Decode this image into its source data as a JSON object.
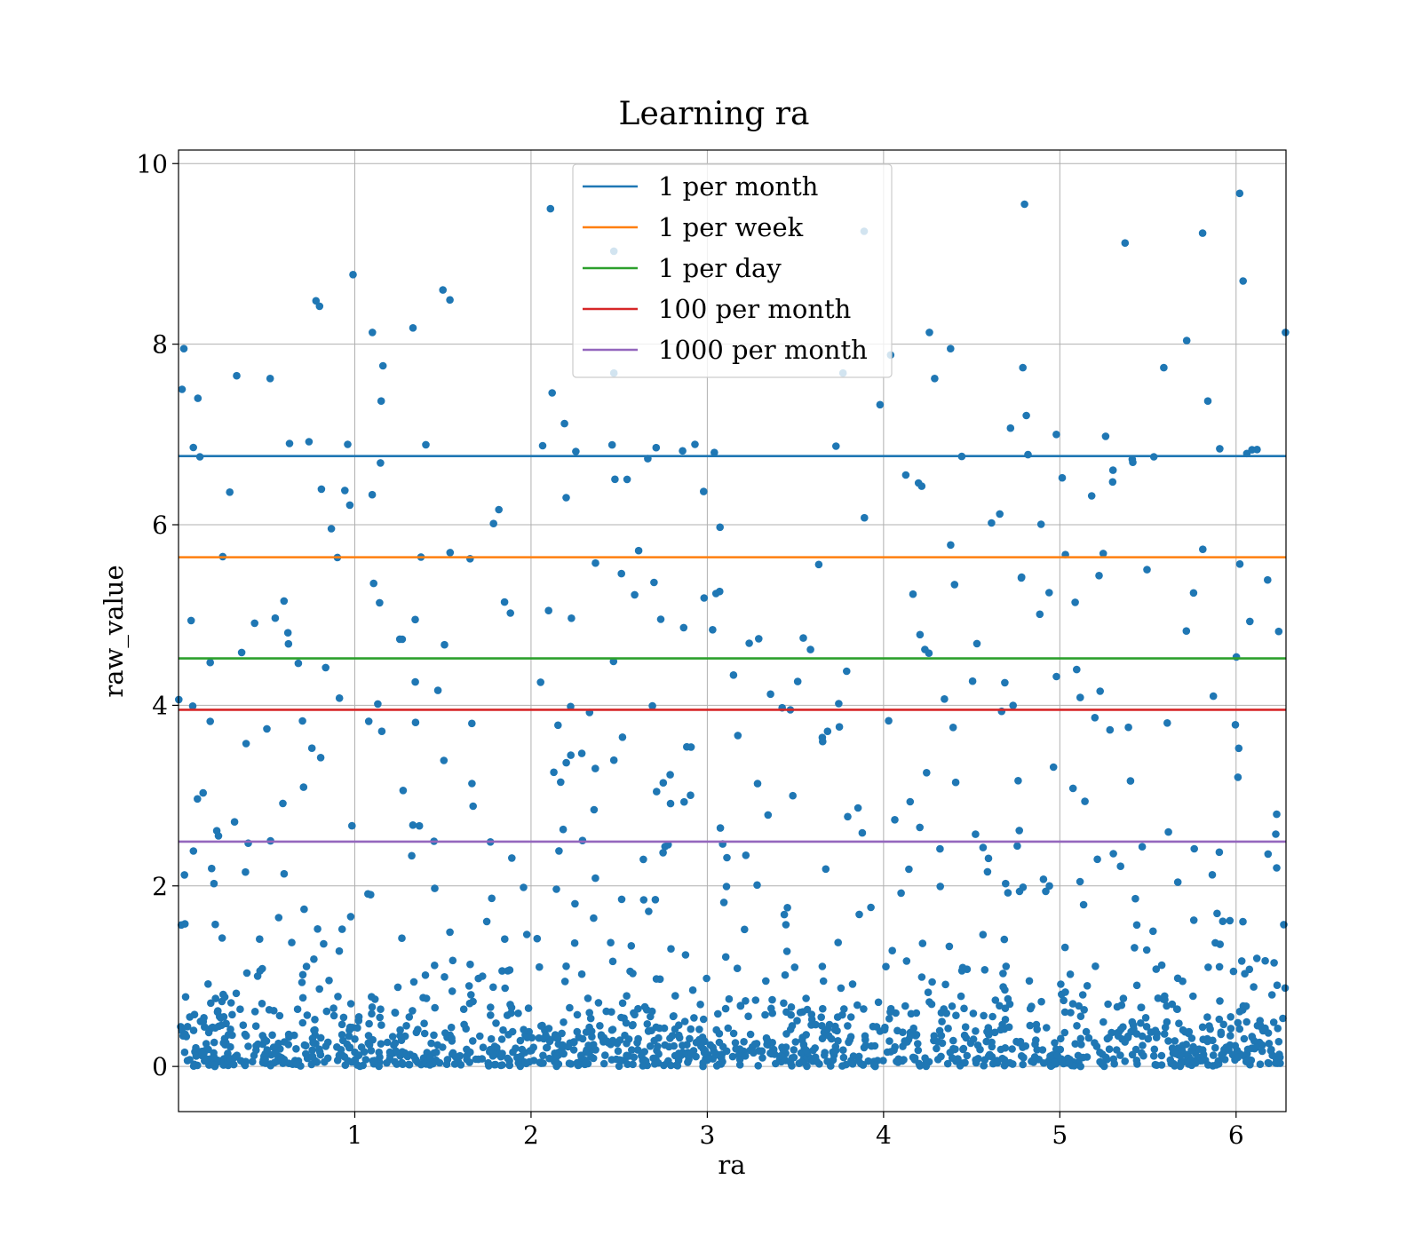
{
  "chart_data": {
    "type": "scatter",
    "title": "Learning ra",
    "xlabel": "ra",
    "ylabel": "raw_value",
    "xlim": [
      0.0,
      6.2832
    ],
    "ylim": [
      -0.5,
      10.15
    ],
    "xticks": [
      1,
      2,
      3,
      4,
      5,
      6
    ],
    "yticks": [
      0,
      2,
      4,
      6,
      8,
      10
    ],
    "grid": true,
    "legend_position": "upper center",
    "point_color": "#1f77b4",
    "notable_points": [
      {
        "x": 0.03,
        "y": 7.95
      },
      {
        "x": 0.02,
        "y": 7.5
      },
      {
        "x": 0.11,
        "y": 7.4
      },
      {
        "x": 0.33,
        "y": 7.65
      },
      {
        "x": 0.52,
        "y": 7.62
      },
      {
        "x": 0.78,
        "y": 8.48
      },
      {
        "x": 0.8,
        "y": 8.42
      },
      {
        "x": 0.99,
        "y": 8.77
      },
      {
        "x": 1.1,
        "y": 8.13
      },
      {
        "x": 1.16,
        "y": 7.76
      },
      {
        "x": 1.15,
        "y": 7.37
      },
      {
        "x": 1.33,
        "y": 8.18
      },
      {
        "x": 1.5,
        "y": 8.6
      },
      {
        "x": 1.54,
        "y": 8.49
      },
      {
        "x": 2.11,
        "y": 9.5
      },
      {
        "x": 2.12,
        "y": 7.46
      },
      {
        "x": 2.19,
        "y": 7.12
      },
      {
        "x": 2.47,
        "y": 9.03
      },
      {
        "x": 2.47,
        "y": 7.68
      },
      {
        "x": 3.89,
        "y": 9.25
      },
      {
        "x": 3.77,
        "y": 7.68
      },
      {
        "x": 4.04,
        "y": 7.88
      },
      {
        "x": 3.98,
        "y": 7.33
      },
      {
        "x": 4.26,
        "y": 8.13
      },
      {
        "x": 4.38,
        "y": 7.95
      },
      {
        "x": 4.29,
        "y": 7.62
      },
      {
        "x": 4.8,
        "y": 9.55
      },
      {
        "x": 4.79,
        "y": 7.74
      },
      {
        "x": 4.81,
        "y": 7.21
      },
      {
        "x": 5.37,
        "y": 9.12
      },
      {
        "x": 5.81,
        "y": 9.23
      },
      {
        "x": 5.72,
        "y": 8.04
      },
      {
        "x": 5.59,
        "y": 7.74
      },
      {
        "x": 5.84,
        "y": 7.37
      },
      {
        "x": 6.02,
        "y": 9.67
      },
      {
        "x": 6.04,
        "y": 8.7
      },
      {
        "x": 6.28,
        "y": 8.13
      },
      {
        "x": 0.63,
        "y": 6.9
      },
      {
        "x": 0.74,
        "y": 6.92
      },
      {
        "x": 0.96,
        "y": 6.89
      },
      {
        "x": 2.93,
        "y": 6.89
      },
      {
        "x": 3.04,
        "y": 6.8
      },
      {
        "x": 3.73,
        "y": 6.87
      },
      {
        "x": 4.98,
        "y": 7.0
      },
      {
        "x": 5.26,
        "y": 6.98
      },
      {
        "x": 6.09,
        "y": 6.83
      },
      {
        "x": 4.72,
        "y": 7.07
      }
    ],
    "series": [
      {
        "name": "1 per month",
        "type": "hline",
        "y": 6.76,
        "color": "#1f77b4"
      },
      {
        "name": "1 per week",
        "type": "hline",
        "y": 5.64,
        "color": "#ff7f0e"
      },
      {
        "name": "1 per day",
        "type": "hline",
        "y": 4.52,
        "color": "#2ca02c"
      },
      {
        "name": "100 per month",
        "type": "hline",
        "y": 3.95,
        "color": "#d62728"
      },
      {
        "name": "1000 per month",
        "type": "hline",
        "y": 2.49,
        "color": "#9467bd"
      }
    ]
  }
}
